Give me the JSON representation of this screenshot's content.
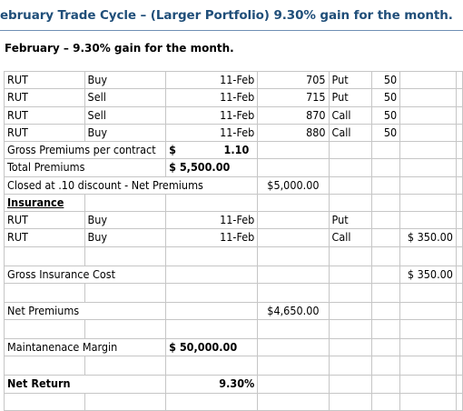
{
  "title": "ebruary Trade Cycle – (Larger Portfolio) 9.30% gain for the month.",
  "subtitle": "February –  9.30% gain for the month.",
  "trades": [
    {
      "symbol": "RUT",
      "action": "Buy",
      "date": "11-Feb",
      "strike": "705",
      "type": "Put",
      "qty": "50"
    },
    {
      "symbol": "RUT",
      "action": "Sell",
      "date": "11-Feb",
      "strike": "715",
      "type": "Put",
      "qty": "50"
    },
    {
      "symbol": "RUT",
      "action": "Sell",
      "date": "11-Feb",
      "strike": "870",
      "type": "Call",
      "qty": "50"
    },
    {
      "symbol": "RUT",
      "action": "Buy",
      "date": "11-Feb",
      "strike": "880",
      "type": "Call",
      "qty": "50"
    }
  ],
  "gross_premiums": {
    "label": "Gross Premiums per contract",
    "currency": "$",
    "value": "1.10"
  },
  "total_premiums": {
    "label": "Total Premiums",
    "value": "$ 5,500.00"
  },
  "closed_discount": {
    "label": "Closed at .10 discount - Net Premiums",
    "value": "$5,000.00"
  },
  "insurance_heading": "Insurance",
  "insurance": [
    {
      "symbol": "RUT",
      "action": "Buy",
      "date": "11-Feb",
      "type": "Put",
      "cost": ""
    },
    {
      "symbol": "RUT",
      "action": "Buy",
      "date": "11-Feb",
      "type": "Call",
      "cost": "$ 350.00"
    }
  ],
  "gross_insurance": {
    "label": "Gross Insurance Cost",
    "value": "$ 350.00"
  },
  "net_premiums": {
    "label": "Net Premiums",
    "value": "$4,650.00"
  },
  "margin": {
    "label": "Maintanenace Margin",
    "value": "$ 50,000.00"
  },
  "net_return": {
    "label": "Net Return",
    "value": "9.30%"
  }
}
